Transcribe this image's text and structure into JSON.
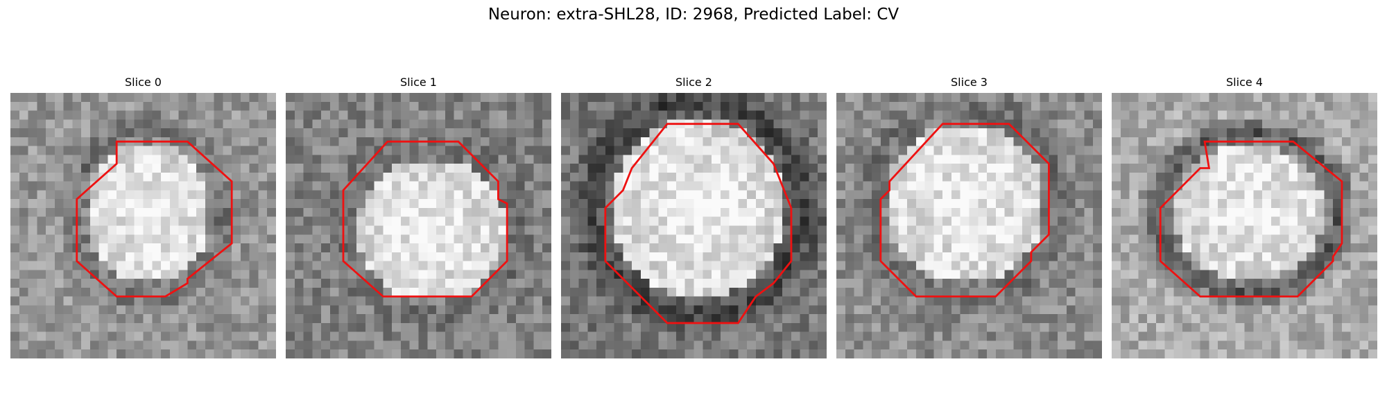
{
  "figure": {
    "title": "Neuron: extra-SHL28, ID: 2968, Predicted Label: CV"
  },
  "colors": {
    "contour": "#ee1111",
    "background": "#ffffff"
  },
  "panels": [
    {
      "title": "Slice 0"
    },
    {
      "title": "Slice 1"
    },
    {
      "title": "Slice 2"
    },
    {
      "title": "Slice 3"
    },
    {
      "title": "Slice 4"
    }
  ]
}
